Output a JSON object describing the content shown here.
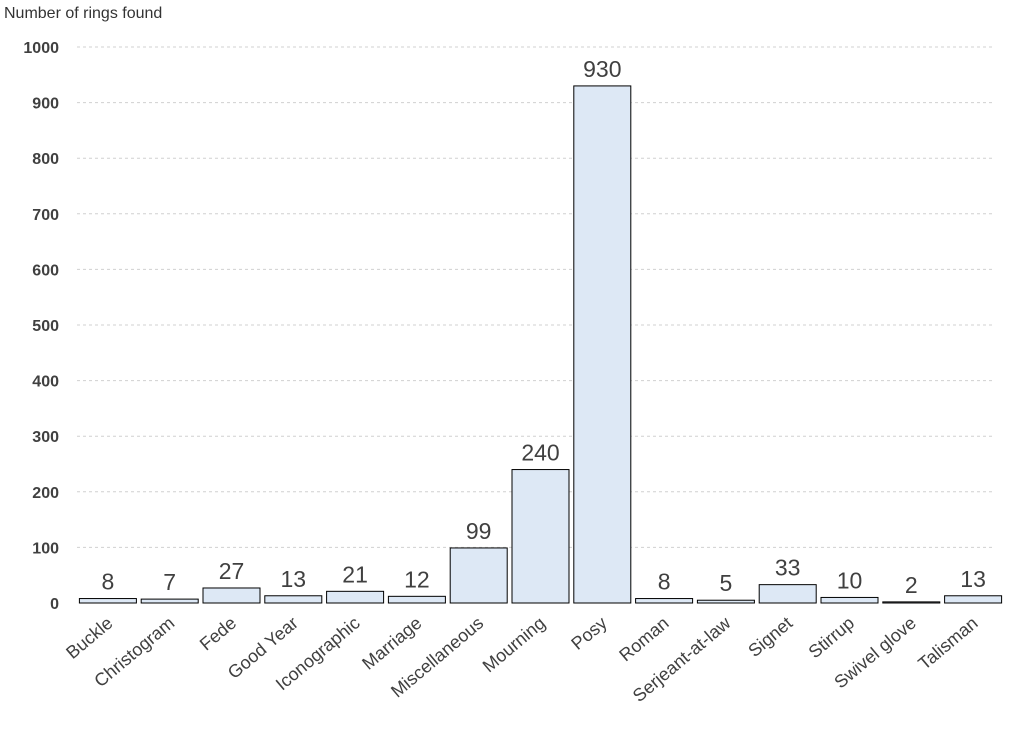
{
  "chart_data": {
    "type": "bar",
    "ylabel": "Number of rings found",
    "xlabel": "",
    "ylim": [
      0,
      1000
    ],
    "yticks": [
      0,
      100,
      200,
      300,
      400,
      500,
      600,
      700,
      800,
      900,
      1000
    ],
    "grid": true,
    "categories": [
      "Buckle",
      "Christogram",
      "Fede",
      "Good Year",
      "Iconographic",
      "Marriage",
      "Miscellaneous",
      "Mourning",
      "Posy",
      "Roman",
      "Serjeant-at-law",
      "Signet",
      "Stirrup",
      "Swivel glove",
      "Talisman"
    ],
    "values": [
      8,
      7,
      27,
      13,
      21,
      12,
      99,
      240,
      930,
      8,
      5,
      33,
      10,
      2,
      13
    ],
    "bar_color": "#dde8f5",
    "bar_edge_color": "#000000"
  }
}
